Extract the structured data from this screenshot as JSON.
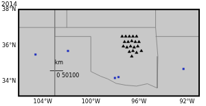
{
  "chart_data": {
    "type": "scatter",
    "title": "2014",
    "xlim": [
      -106,
      -91
    ],
    "xticks": [
      {
        "value": -104,
        "label": "104°W"
      },
      {
        "value": -100,
        "label": "100°W"
      },
      {
        "value": -96,
        "label": "96°W"
      },
      {
        "value": -92,
        "label": "92°W"
      }
    ],
    "ylim": [
      33.2,
      38
    ],
    "yticks": [
      {
        "value": 34,
        "label": "34°N"
      },
      {
        "value": 36,
        "label": "36°N"
      },
      {
        "value": 38,
        "label": "38°N"
      }
    ],
    "grid": false,
    "series": [
      {
        "color": "#000000",
        "marker": "triangle",
        "x": [
          -97.4,
          -97.1,
          -96.8,
          -96.5,
          -96.2,
          -97.2,
          -96.9,
          -96.6,
          -96.3,
          -96.0,
          -97.3,
          -97.0,
          -96.7,
          -96.4,
          -96.1,
          -96.8,
          -96.5,
          -96.2,
          -96.6,
          -95.8
        ],
        "y": [
          36.5,
          36.5,
          36.5,
          36.5,
          36.5,
          36.2,
          36.2,
          36.25,
          36.2,
          36.2,
          35.95,
          35.9,
          35.95,
          35.9,
          35.95,
          35.65,
          35.7,
          35.6,
          35.4,
          35.7
        ]
      },
      {
        "color": "#1f2fbf",
        "marker": "square",
        "x": [
          -104.6,
          -101.9,
          -98.0,
          -97.7,
          -92.3
        ],
        "y": [
          35.5,
          35.7,
          34.2,
          34.25,
          34.7
        ]
      }
    ],
    "lines": [
      {
        "color": "#7a7a7a",
        "x": [
          -103,
          -94.62,
          -94.43,
          -94.48,
          -95.3,
          -96.2,
          -97.1,
          -97.9,
          -98.6,
          -99.2,
          -100,
          -100,
          -103,
          -103
        ],
        "y": [
          37,
          37,
          35.4,
          33.64,
          33.88,
          33.75,
          33.8,
          33.9,
          34.15,
          34.3,
          34.56,
          36.5,
          36.5,
          37
        ]
      },
      {
        "color": "#7a7a7a",
        "x": [
          -106,
          -103
        ],
        "y": [
          37,
          37
        ]
      },
      {
        "color": "#7a7a7a",
        "x": [
          -94.62,
          -91
        ],
        "y": [
          36.5,
          36.5
        ]
      },
      {
        "color": "#7a7a7a",
        "x": [
          -103,
          -103,
          -103
        ],
        "y": [
          38,
          37,
          32
        ]
      },
      {
        "color": "#7a7a7a",
        "x": [
          -94.62,
          -94.62
        ],
        "y": [
          37,
          38
        ]
      },
      {
        "color": "#7a7a7a",
        "x": [
          -102,
          -102
        ],
        "y": [
          37,
          38
        ]
      },
      {
        "color": "#000000",
        "x": [
          -103.4,
          -102.3
        ],
        "y": [
          34.6,
          34.6
        ]
      }
    ],
    "annotations": [
      {
        "text": "km",
        "x": -103.0,
        "y": 35.05
      },
      {
        "text": "0 50100",
        "x": -102.85,
        "y": 34.3
      }
    ]
  }
}
